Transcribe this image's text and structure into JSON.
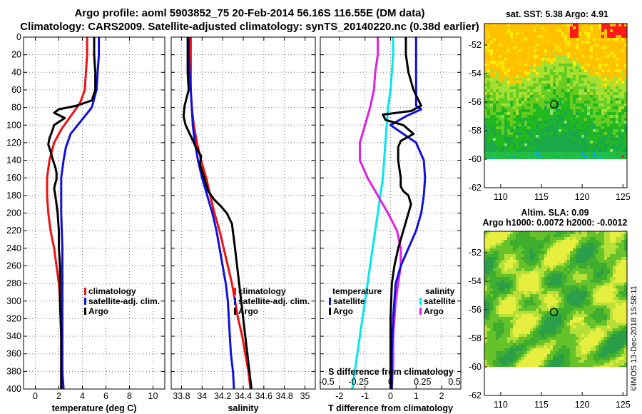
{
  "header": {
    "line1": "Argo profile: aoml 5903852_75 20-Feb-2014 56.16S 116.55E (DM data)",
    "line2": "Climatology: CARS2009. Satellite-adjusted climatology: synTS_20140220.nc (0.38d earlier)"
  },
  "colors": {
    "climatology": "#ee1111",
    "satellite": "#1010dd",
    "argo": "#000000",
    "salinity_diff_satellite": "#00e8ee",
    "salinity_diff_argo": "#e020e0"
  },
  "chart_data": [
    {
      "type": "line",
      "panel": "temperature",
      "title": "",
      "xlabel": "temperature (deg C)",
      "ylabel": "",
      "xlim": [
        -1,
        11
      ],
      "ylim": [
        400,
        0
      ],
      "xticks": [
        0,
        2,
        4,
        6,
        8,
        10
      ],
      "xtick_labels": [
        "0",
        "2",
        "4",
        "6",
        "8",
        "10"
      ],
      "yticks": [
        0,
        20,
        40,
        60,
        80,
        100,
        120,
        140,
        160,
        180,
        200,
        220,
        240,
        260,
        280,
        300,
        320,
        340,
        360,
        380,
        400
      ],
      "ytick_labels": [
        "0",
        "20",
        "40",
        "60",
        "80",
        "100",
        "120",
        "140",
        "160",
        "180",
        "200",
        "220",
        "240",
        "260",
        "280",
        "300",
        "320",
        "340",
        "360",
        "380",
        "400"
      ],
      "grid": true,
      "legend": [
        "climatology",
        "satellite-adj. clim.",
        "Argo"
      ],
      "series": [
        {
          "name": "climatology",
          "color": "#ee1111",
          "x": [
            4.4,
            4.4,
            4.3,
            4.2,
            3.8,
            3.0,
            2.2,
            1.6,
            1.2,
            1.0,
            1.0,
            1.1,
            1.3,
            1.6,
            1.8,
            2.0,
            2.1,
            2.2,
            2.2,
            2.2
          ],
          "y": [
            0,
            20,
            40,
            60,
            75,
            90,
            105,
            120,
            140,
            160,
            180,
            200,
            220,
            240,
            260,
            280,
            300,
            340,
            370,
            400
          ]
        },
        {
          "name": "satellite-adj. clim.",
          "color": "#1010dd",
          "x": [
            5.4,
            5.4,
            5.3,
            5.2,
            4.8,
            4.2,
            3.6,
            3.0,
            2.6,
            2.4,
            2.2,
            2.2,
            2.2,
            2.3,
            2.3,
            2.3,
            2.3,
            2.3,
            2.4
          ],
          "y": [
            0,
            20,
            40,
            60,
            80,
            90,
            100,
            110,
            125,
            140,
            160,
            180,
            200,
            240,
            280,
            320,
            360,
            380,
            400
          ]
        },
        {
          "name": "Argo",
          "color": "#000000",
          "x": [
            5.0,
            5.0,
            5.1,
            5.1,
            4.8,
            3.5,
            2.0,
            1.6,
            2.5,
            1.6,
            1.4,
            1.2,
            1.1,
            1.3,
            1.5,
            1.7,
            1.8,
            1.8,
            1.8,
            1.7,
            1.6,
            1.7,
            1.8,
            1.9,
            2.0,
            2.0,
            2.1,
            2.1,
            2.1,
            2.2,
            2.2,
            2.2
          ],
          "y": [
            0,
            20,
            40,
            60,
            72,
            78,
            82,
            86,
            92,
            100,
            108,
            115,
            122,
            130,
            140,
            148,
            154,
            158,
            162,
            166,
            172,
            180,
            190,
            200,
            220,
            240,
            260,
            280,
            300,
            340,
            380,
            400
          ]
        }
      ]
    },
    {
      "type": "line",
      "panel": "salinity",
      "title": "",
      "xlabel": "salinity",
      "ylabel": "",
      "xlim": [
        33.7,
        35.1
      ],
      "ylim": [
        400,
        0
      ],
      "xticks": [
        33.8,
        34.0,
        34.2,
        34.4,
        34.6,
        34.8,
        35.0
      ],
      "xtick_labels": [
        "33.8",
        "34",
        "34.2",
        "34.4",
        "34.6",
        "34.8",
        "35"
      ],
      "grid": true,
      "legend": [
        "climatology",
        "satellite-adj. clim.",
        "Argo"
      ],
      "series": [
        {
          "name": "climatology",
          "color": "#ee1111",
          "x": [
            33.89,
            33.89,
            33.89,
            33.89,
            33.9,
            33.92,
            33.95,
            33.99,
            34.04,
            34.08,
            34.12,
            34.17,
            34.21,
            34.25,
            34.29,
            34.32,
            34.35,
            34.39,
            34.42,
            34.45,
            34.47
          ],
          "y": [
            0,
            20,
            40,
            60,
            80,
            100,
            120,
            140,
            160,
            180,
            200,
            220,
            240,
            260,
            280,
            300,
            320,
            340,
            360,
            380,
            400
          ]
        },
        {
          "name": "satellite-adj. clim.",
          "color": "#1010dd",
          "x": [
            33.87,
            33.87,
            33.88,
            33.89,
            33.9,
            33.91,
            33.93,
            33.96,
            34.0,
            34.05,
            34.1,
            34.14,
            34.17,
            34.2,
            34.23,
            34.25,
            34.26,
            34.27,
            34.28,
            34.3,
            34.31
          ],
          "y": [
            0,
            20,
            40,
            60,
            80,
            100,
            120,
            140,
            160,
            180,
            200,
            220,
            240,
            260,
            280,
            300,
            320,
            340,
            360,
            380,
            400
          ]
        },
        {
          "name": "Argo",
          "color": "#000000",
          "x": [
            33.86,
            33.86,
            33.86,
            33.87,
            33.83,
            33.82,
            33.84,
            33.9,
            33.94,
            33.99,
            33.98,
            34.02,
            34.06,
            34.12,
            34.18,
            34.24,
            34.29,
            34.31,
            34.33,
            34.35,
            34.37,
            34.39,
            34.41,
            34.43,
            34.45,
            34.47,
            34.48
          ],
          "y": [
            0,
            20,
            40,
            60,
            78,
            90,
            100,
            115,
            125,
            135,
            145,
            160,
            175,
            185,
            192,
            200,
            212,
            230,
            250,
            270,
            290,
            310,
            330,
            350,
            370,
            390,
            400
          ]
        }
      ]
    },
    {
      "type": "line",
      "panel": "difference",
      "title": "",
      "xlabel": "T difference from climatology",
      "xlabel_top": "S difference from climatology",
      "ylabel": "",
      "xlim": [
        -2.75,
        2.75
      ],
      "ylim": [
        400,
        0
      ],
      "xticks": [
        -2,
        -1,
        0,
        1,
        2
      ],
      "xtick_labels": [
        "-2",
        "-1",
        "0",
        "1",
        "2"
      ],
      "s_ticks": [
        "-0.5",
        "-0.25",
        "0",
        "0.25",
        "0.5"
      ],
      "grid": true,
      "legend_temperature": {
        "title": "temperature",
        "items": [
          "satellite",
          "Argo"
        ]
      },
      "legend_salinity": {
        "title": "salinity",
        "items": [
          "satellite",
          "Argo"
        ]
      },
      "series": [
        {
          "name": "temperature satellite",
          "color": "#1010dd",
          "x": [
            1.0,
            1.0,
            1.0,
            1.0,
            1.0,
            1.0,
            1.0,
            1.2,
            0.6,
            0.0,
            0.5,
            1.0,
            1.3,
            1.35,
            1.3,
            1.2,
            1.0,
            0.7,
            0.4,
            0.2,
            0.1,
            0.05,
            0.05
          ],
          "y": [
            0,
            20,
            40,
            60,
            70,
            75,
            78,
            82,
            90,
            100,
            110,
            120,
            140,
            160,
            180,
            200,
            220,
            240,
            260,
            280,
            320,
            360,
            400
          ]
        },
        {
          "name": "temperature Argo",
          "color": "#000000",
          "x": [
            0.6,
            0.6,
            0.7,
            0.9,
            1.2,
            0.8,
            -0.3,
            -0.2,
            0.5,
            0.9,
            0.4,
            0.3,
            0.3,
            0.4,
            0.4,
            0.5,
            0.7,
            0.8,
            0.7,
            0.5,
            0.3,
            0.15,
            0.05,
            0.0,
            0.0
          ],
          "y": [
            0,
            20,
            40,
            60,
            78,
            84,
            88,
            94,
            100,
            110,
            118,
            125,
            140,
            160,
            170,
            175,
            180,
            190,
            200,
            220,
            240,
            260,
            280,
            320,
            400
          ]
        },
        {
          "name": "salinity satellite",
          "color": "#00e8ee",
          "x": [
            0.02,
            0.02,
            0.01,
            0.0,
            -0.02,
            -0.03,
            -0.04,
            -0.05,
            -0.06,
            -0.08,
            -0.1,
            -0.12,
            -0.14,
            -0.16,
            -0.18,
            -0.2,
            -0.22,
            -0.24,
            -0.26,
            -0.28,
            -0.3
          ],
          "y": [
            0,
            20,
            40,
            60,
            80,
            100,
            120,
            140,
            160,
            180,
            200,
            220,
            240,
            260,
            280,
            300,
            320,
            340,
            360,
            380,
            400
          ]
        },
        {
          "name": "salinity Argo",
          "color": "#e020e0",
          "x": [
            -0.1,
            -0.1,
            -0.12,
            -0.13,
            -0.16,
            -0.2,
            -0.24,
            -0.24,
            -0.18,
            -0.1,
            -0.02,
            0.05,
            0.08,
            0.08,
            0.06,
            0.04,
            0.03,
            0.02,
            0.02,
            0.01
          ],
          "y": [
            0,
            20,
            40,
            60,
            80,
            100,
            120,
            140,
            160,
            180,
            200,
            220,
            240,
            260,
            280,
            300,
            320,
            340,
            370,
            400
          ]
        }
      ]
    },
    {
      "type": "heatmap",
      "panel": "sst_map",
      "title": "sat. SST: 5.38 Argo: 4.91",
      "xlabel": "",
      "ylabel": "",
      "xlim": [
        108,
        125.5
      ],
      "ylim": [
        -62,
        -50.5
      ],
      "xticks": [
        110,
        115,
        120,
        125
      ],
      "xtick_labels": [
        "110",
        "115",
        "120",
        "125"
      ],
      "yticks": [
        -52,
        -54,
        -56,
        -58,
        -60,
        -62
      ],
      "ytick_labels": [
        "-52",
        "-54",
        "-56",
        "-58",
        "-60",
        "-62"
      ],
      "marker": {
        "lon": 116.55,
        "lat": -56.16
      },
      "data_extent_lat_min": -60
    },
    {
      "type": "heatmap",
      "panel": "sla_map",
      "title": "Altim. SLA: 0.09",
      "subtitle": "Argo h1000: 0.0072 h2000: -0.0012",
      "xlabel": "",
      "ylabel": "",
      "xlim": [
        108,
        125.5
      ],
      "ylim": [
        -62,
        -50.5
      ],
      "xticks": [
        110,
        115,
        120,
        125
      ],
      "xtick_labels": [
        "110",
        "115",
        "120",
        "125"
      ],
      "yticks": [
        -52,
        -54,
        -56,
        -58,
        -60,
        -62
      ],
      "ytick_labels": [
        "-52",
        "-54",
        "-56",
        "-58",
        "-60",
        "-62"
      ],
      "marker": {
        "lon": 116.55,
        "lat": -56.16
      },
      "data_extent_lat_min": -60
    }
  ],
  "credit": "©IMOS 13-Dec-2018 15:58:11"
}
